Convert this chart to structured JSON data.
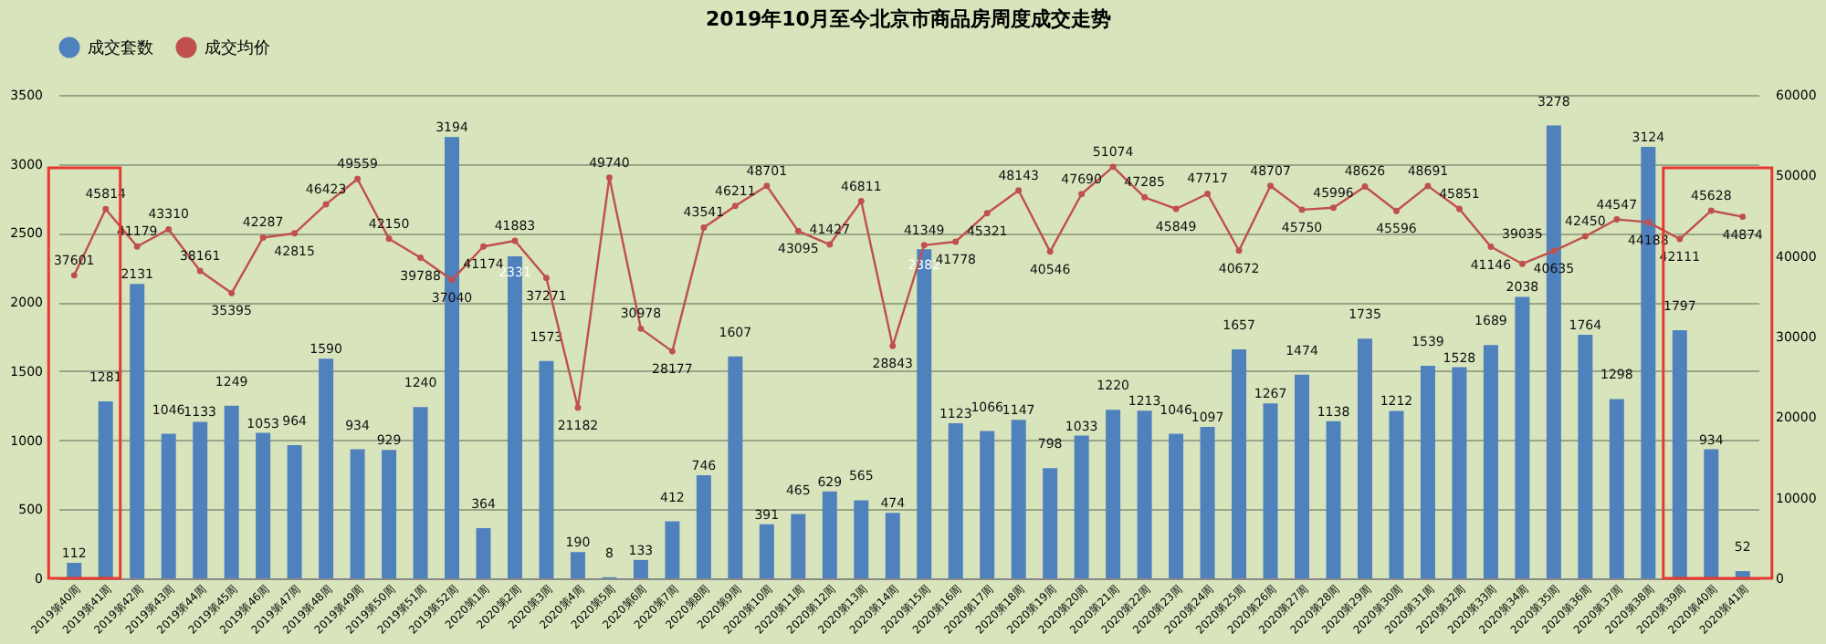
{
  "chart_data": {
    "type": "bar",
    "title": "2019年10月至今北京市商品房周度成交走势",
    "categories": [
      "2019第40周",
      "2019第41周",
      "2019第42周",
      "2019第43周",
      "2019第44周",
      "2019第45周",
      "2019第46周",
      "2019第47周",
      "2019第48周",
      "2019第49周",
      "2019第50周",
      "2019第51周",
      "2019第52周",
      "2020第1周",
      "2020第2周",
      "2020第3周",
      "2020第4周",
      "2020第5周",
      "2020第6周",
      "2020第7周",
      "2020第8周",
      "2020第9周",
      "2020第10周",
      "2020第11周",
      "2020第12周",
      "2020第13周",
      "2020第14周",
      "2020第15周",
      "2020第16周",
      "2020第17周",
      "2020第18周",
      "2020第19周",
      "2020第20周",
      "2020第21周",
      "2020第22周",
      "2020第23周",
      "2020第24周",
      "2020第25周",
      "2020第26周",
      "2020第27周",
      "2020第28周",
      "2020第29周",
      "2020第30周",
      "2020第31周",
      "2020第32周",
      "2020第33周",
      "2020第34周",
      "2020第35周",
      "2020第36周",
      "2020第37周",
      "2020第38周",
      "2020第39周",
      "2020第40周",
      "2020第41周"
    ],
    "series": [
      {
        "name": "成交套数",
        "color": "#4f81bd",
        "values": [
          112,
          1281,
          2131,
          1046,
          1133,
          1249,
          1053,
          964,
          1590,
          934,
          929,
          1240,
          3194,
          364,
          2331,
          1573,
          190,
          8,
          133,
          412,
          746,
          1607,
          391,
          465,
          629,
          565,
          474,
          2382,
          1123,
          1066,
          1147,
          798,
          1033,
          1220,
          1213,
          1046,
          1097,
          1657,
          1267,
          1474,
          1138,
          1735,
          1212,
          1539,
          1528,
          1689,
          2038,
          3278,
          1764,
          1298,
          3124,
          1797,
          934,
          52
        ]
      },
      {
        "name": "成交均价",
        "type": "line",
        "axis": "y2",
        "color": "#c0504d",
        "marker": "circle",
        "values": [
          37601,
          45814,
          41179,
          43310,
          38161,
          35395,
          42287,
          42815,
          46423,
          49559,
          42150,
          39788,
          37040,
          41174,
          41883,
          37271,
          21182,
          49740,
          30978,
          28177,
          43541,
          46211,
          48701,
          43095,
          41427,
          46811,
          28843,
          41349,
          41778,
          45321,
          48143,
          40546,
          47690,
          51074,
          47285,
          45849,
          47717,
          40672,
          48707,
          45750,
          45996,
          48626,
          45596,
          48691,
          45851,
          41146,
          39035,
          40635,
          42450,
          44547,
          44188,
          42111,
          45628,
          44874
        ]
      }
    ],
    "ylim": [
      0,
      3500
    ],
    "yticks": [
      0,
      500,
      1000,
      1500,
      2000,
      2500,
      3000,
      3500
    ],
    "y2lim": [
      0,
      60000
    ],
    "y2ticks": [
      0,
      10000,
      20000,
      30000,
      40000,
      50000,
      60000
    ],
    "grid": "y",
    "legend": "top",
    "data_labels": true
  }
}
